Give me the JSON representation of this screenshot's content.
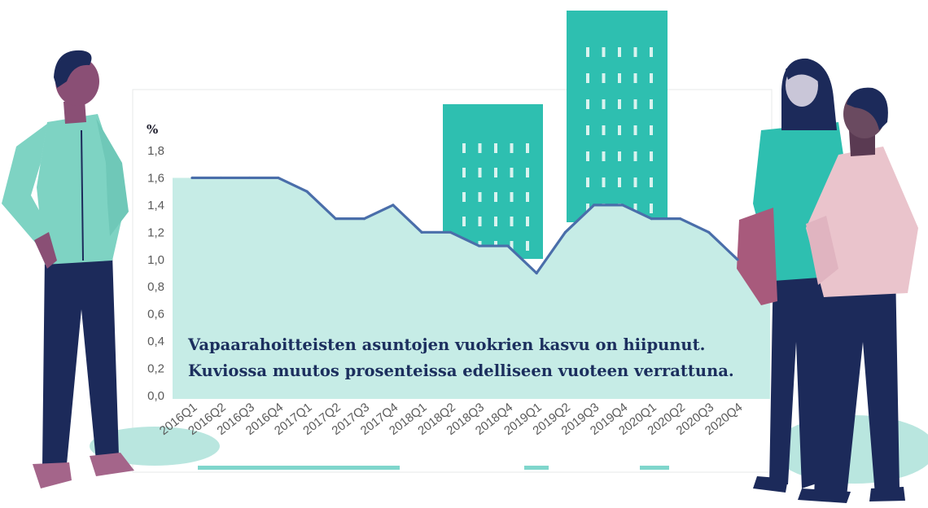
{
  "chart_data": {
    "type": "area",
    "unit_label": "%",
    "categories": [
      "2016Q1",
      "2016Q2",
      "2016Q3",
      "2016Q4",
      "2017Q1",
      "2017Q2",
      "2017Q3",
      "2017Q4",
      "2018Q1",
      "2018Q2",
      "2018Q3",
      "2018Q4",
      "2019Q1",
      "2019Q2",
      "2019Q3",
      "2019Q4",
      "2020Q1",
      "2020Q2",
      "2020Q3",
      "2020Q4"
    ],
    "values": [
      1.6,
      1.6,
      1.6,
      1.6,
      1.5,
      1.3,
      1.3,
      1.4,
      1.2,
      1.2,
      1.1,
      1.1,
      0.9,
      1.2,
      1.4,
      1.4,
      1.3,
      1.3,
      1.2,
      1.0
    ],
    "yticks": [
      "0,0",
      "0,2",
      "0,4",
      "0,6",
      "0,8",
      "1,0",
      "1,2",
      "1,4",
      "1,6",
      "1,8"
    ],
    "ylim": [
      0,
      1.8
    ],
    "grid": false,
    "annotation_lines": [
      "Vapaarahoitteisten asuntojen vuokrien kasvu on hiipunut.",
      "Kuviossa muutos prosenteissa edelliseen vuoteen verrattuna."
    ]
  },
  "colors": {
    "line": "#4a6eaa",
    "area": "#c6ece6",
    "building": "#2ebfb0",
    "text": "#1c2f5e"
  }
}
